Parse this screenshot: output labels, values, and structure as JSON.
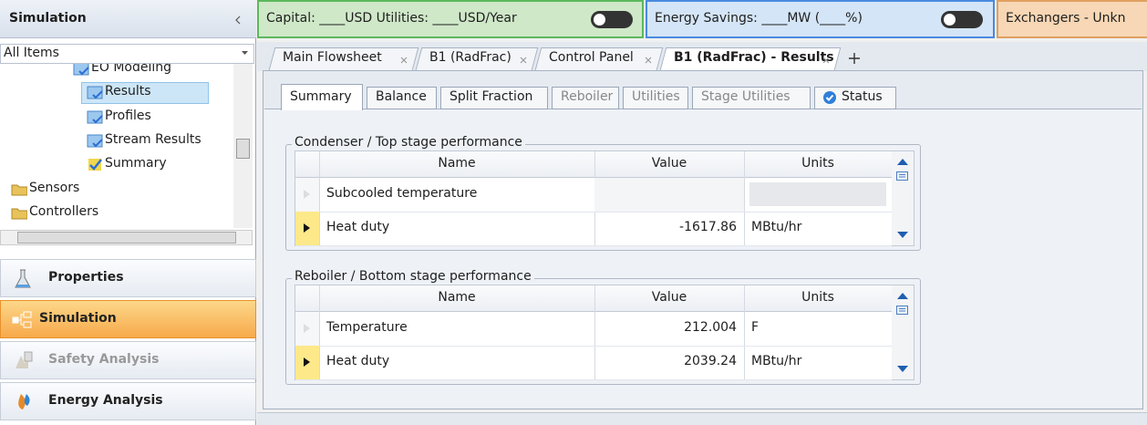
{
  "sidebar": {
    "title": "Simulation",
    "filter": "All Items",
    "tree": [
      {
        "label": "EO Modeling",
        "level": 2
      },
      {
        "label": "Results",
        "level": 3,
        "selected": true
      },
      {
        "label": "Profiles",
        "level": 3
      },
      {
        "label": "Stream Results",
        "level": 3
      },
      {
        "label": "Summary",
        "level": 3
      },
      {
        "label": "Sensors",
        "level": 1
      },
      {
        "label": "Controllers",
        "level": 1
      }
    ],
    "nav": [
      {
        "label": "Properties"
      },
      {
        "label": "Simulation",
        "active": true
      },
      {
        "label": "Safety Analysis",
        "disabled": true
      },
      {
        "label": "Energy Analysis"
      }
    ]
  },
  "toolbar": {
    "capital": "Capital: ____USD  Utilities: ____USD/Year",
    "energy": "Energy Savings: ____MW  (____%)",
    "exchangers": "Exchangers - Unkn"
  },
  "tabs": [
    {
      "label": "Main Flowsheet"
    },
    {
      "label": "B1 (RadFrac)"
    },
    {
      "label": "Control Panel"
    },
    {
      "label": "B1 (RadFrac) - Results",
      "active": true
    }
  ],
  "subtabs": [
    {
      "label": "Summary",
      "active": true
    },
    {
      "label": "Balance"
    },
    {
      "label": "Split Fraction"
    },
    {
      "label": "Reboiler",
      "disabled": true
    },
    {
      "label": "Utilities",
      "disabled": true
    },
    {
      "label": "Stage Utilities",
      "disabled": true
    },
    {
      "label": "Status",
      "icon": true
    }
  ],
  "groups": [
    {
      "title": "Condenser / Top stage performance",
      "columns": [
        "Name",
        "Value",
        "Units"
      ],
      "rows": [
        {
          "name": "Subcooled temperature"
        },
        {
          "name": "Heat duty",
          "value": "-1617.86",
          "units": "MBtu/hr",
          "current": true
        }
      ]
    },
    {
      "title": "Reboiler / Bottom stage performance",
      "columns": [
        "Name",
        "Value",
        "Units"
      ],
      "rows": [
        {
          "name": "Temperature",
          "value": "212.004",
          "units": "F"
        },
        {
          "name": "Heat duty",
          "value": "2039.24",
          "units": "MBtu/hr",
          "current": true
        }
      ]
    }
  ]
}
